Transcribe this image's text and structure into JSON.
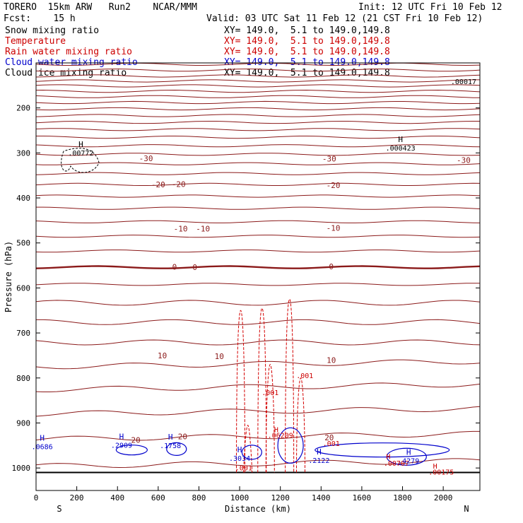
{
  "header": {
    "title_left": "TORERO  15km ARW   Run2    NCAR/MMM",
    "init": "Init: 12 UTC Fri 10 Feb 12",
    "fcst": "Fcst:    15 h",
    "valid": "Valid: 03 UTC Sat 11 Feb 12 (21 CST Fri 10 Feb 12)"
  },
  "legend": [
    {
      "label": "Snow mixing ratio",
      "xy": "XY= 149.0,  5.1 to 149.0,149.8",
      "color": "#000000"
    },
    {
      "label": "Temperature",
      "xy": "XY= 149.0,  5.1 to 149.0,149.8",
      "color": "#cc0000"
    },
    {
      "label": "Rain water mixing ratio",
      "xy": "XY= 149.0,  5.1 to 149.0,149.8",
      "color": "#cc0000"
    },
    {
      "label": "Cloud water mixing ratio",
      "xy": "XY= 149.0,  5.1 to 149.0,149.8",
      "color": "#0000cc"
    },
    {
      "label": "Cloud ice mixing ratio",
      "xy": "XY= 149.0,  5.1 to 149.0,149.8",
      "color": "#000000"
    }
  ],
  "chart_data": {
    "type": "contour-cross-section",
    "xlabel": "Distance (km)",
    "ylabel": "Pressure (hPa)",
    "xlim": [
      0,
      2180
    ],
    "ylim": [
      1050,
      100
    ],
    "x_ticks": [
      0,
      200,
      400,
      600,
      800,
      1000,
      1200,
      1400,
      1600,
      1800,
      2000
    ],
    "y_ticks": [
      200,
      300,
      400,
      500,
      600,
      700,
      800,
      900,
      1000
    ],
    "x_end_labels": {
      "left": "S",
      "right": "N"
    },
    "surface_pressure": 1010,
    "temperature": {
      "color": "#8b1a1a",
      "isotherm_pressures": [
        103,
        116,
        129,
        140,
        151,
        163,
        175,
        188,
        202,
        217,
        232,
        248,
        265,
        284,
        303,
        324,
        346,
        370,
        396,
        423,
        453,
        485,
        518,
        554,
        592,
        633,
        676,
        721,
        769,
        820,
        874,
        930,
        990
      ],
      "labels": [
        {
          "text": "-30",
          "x": 540,
          "p": 312
        },
        {
          "text": "-30",
          "x": 1440,
          "p": 313
        },
        {
          "text": "-30",
          "x": 2100,
          "p": 316
        },
        {
          "text": "-20",
          "x": 600,
          "p": 370
        },
        {
          "text": "-20",
          "x": 700,
          "p": 369
        },
        {
          "text": "-20",
          "x": 1460,
          "p": 372
        },
        {
          "text": "-10",
          "x": 710,
          "p": 468
        },
        {
          "text": "-10",
          "x": 820,
          "p": 468
        },
        {
          "text": "-10",
          "x": 1460,
          "p": 467
        },
        {
          "text": "0",
          "x": 680,
          "p": 553
        },
        {
          "text": "0",
          "x": 780,
          "p": 554
        },
        {
          "text": "0",
          "x": 1450,
          "p": 552
        },
        {
          "text": "10",
          "x": 620,
          "p": 750
        },
        {
          "text": "10",
          "x": 900,
          "p": 752
        },
        {
          "text": "10",
          "x": 1450,
          "p": 760
        },
        {
          "text": "20",
          "x": 490,
          "p": 938
        },
        {
          "text": "20",
          "x": 720,
          "p": 930
        },
        {
          "text": "20",
          "x": 1440,
          "p": 932
        }
      ]
    },
    "snow": {
      "maxima": [
        {
          "marker": "H",
          "value": ".00772",
          "x": 220,
          "p": 287
        },
        {
          "marker": "H",
          "value": ".000423",
          "x": 1790,
          "p": 276
        },
        {
          "marker": "",
          "value": ".00017",
          "x": 2100,
          "p": 128
        }
      ]
    },
    "rain": {
      "labels": [
        {
          "text": ".001",
          "x": 1150,
          "p": 832
        },
        {
          "text": ".001",
          "x": 1320,
          "p": 794
        },
        {
          "text": ".001",
          "x": 1450,
          "p": 945
        },
        {
          "text": ".001",
          "x": 1020,
          "p": 999
        },
        {
          "text": "H",
          "x": 1180,
          "p": 914
        },
        {
          "text": ".06209",
          "x": 1200,
          "p": 927
        },
        {
          "text": "H",
          "x": 1730,
          "p": 974
        },
        {
          "text": ".00707",
          "x": 1770,
          "p": 989
        },
        {
          "text": "H",
          "x": 1960,
          "p": 995
        },
        {
          "text": ".00175",
          "x": 1990,
          "p": 1008
        }
      ]
    },
    "cloud_water": {
      "maxima": [
        {
          "marker": "H",
          "value": ".0686",
          "x": 30,
          "p": 939
        },
        {
          "marker": "H",
          "value": ".2909",
          "x": 420,
          "p": 936
        },
        {
          "marker": "H",
          "value": ".1758",
          "x": 660,
          "p": 937
        },
        {
          "marker": "H",
          "value": ".3034",
          "x": 1000,
          "p": 965
        },
        {
          "marker": "H",
          "value": ".2122",
          "x": 1390,
          "p": 970
        },
        {
          "marker": "H",
          "value": ".4279",
          "x": 1830,
          "p": 971
        }
      ]
    }
  }
}
